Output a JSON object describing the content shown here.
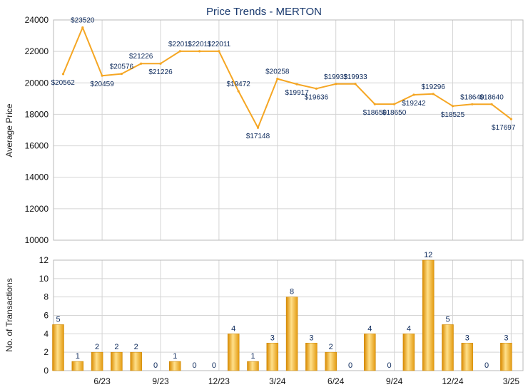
{
  "chart_data": [
    {
      "type": "line",
      "title": "Price Trends - MERTON",
      "ylabel": "Average Price",
      "ylim": [
        10000,
        24000
      ],
      "yticks": [
        10000,
        12000,
        14000,
        16000,
        18000,
        20000,
        22000,
        24000
      ],
      "line_color": "#f5a623",
      "grid": true,
      "values": [
        20562,
        23520,
        20459,
        20576,
        21226,
        21226,
        22011,
        22011,
        22011,
        19472,
        17148,
        20258,
        19917,
        19636,
        19933,
        19933,
        18650,
        18650,
        19242,
        19296,
        18525,
        18640,
        18640,
        17697
      ],
      "labels": [
        "$20562",
        "$23520",
        "$20459",
        "$20576",
        "$21226",
        "$21226",
        "$22011",
        "$22011",
        "$22011",
        "$19472",
        "$17148",
        "$20258",
        "$19917",
        "$19636",
        "$19933",
        "$19933",
        "$18650",
        "$18650",
        "$19242",
        "$19296",
        "$18525",
        "$18640",
        "$18640",
        "$17697"
      ]
    },
    {
      "type": "bar",
      "ylabel": "No. of Transactions",
      "ylim": [
        0,
        12
      ],
      "yticks": [
        0,
        2,
        4,
        6,
        8,
        10,
        12
      ],
      "bar_color": "#f0a81e",
      "grid": true,
      "values": [
        5,
        1,
        2,
        2,
        2,
        0,
        1,
        0,
        0,
        4,
        1,
        3,
        8,
        3,
        2,
        0,
        4,
        0,
        4,
        12,
        5,
        3,
        0,
        3
      ],
      "xticks": [
        {
          "index": 2,
          "label": "6/23"
        },
        {
          "index": 5,
          "label": "9/23"
        },
        {
          "index": 8,
          "label": "12/23"
        },
        {
          "index": 11,
          "label": "3/24"
        },
        {
          "index": 14,
          "label": "6/24"
        },
        {
          "index": 17,
          "label": "9/24"
        },
        {
          "index": 20,
          "label": "12/24"
        },
        {
          "index": 23,
          "label": "3/25"
        }
      ]
    }
  ]
}
